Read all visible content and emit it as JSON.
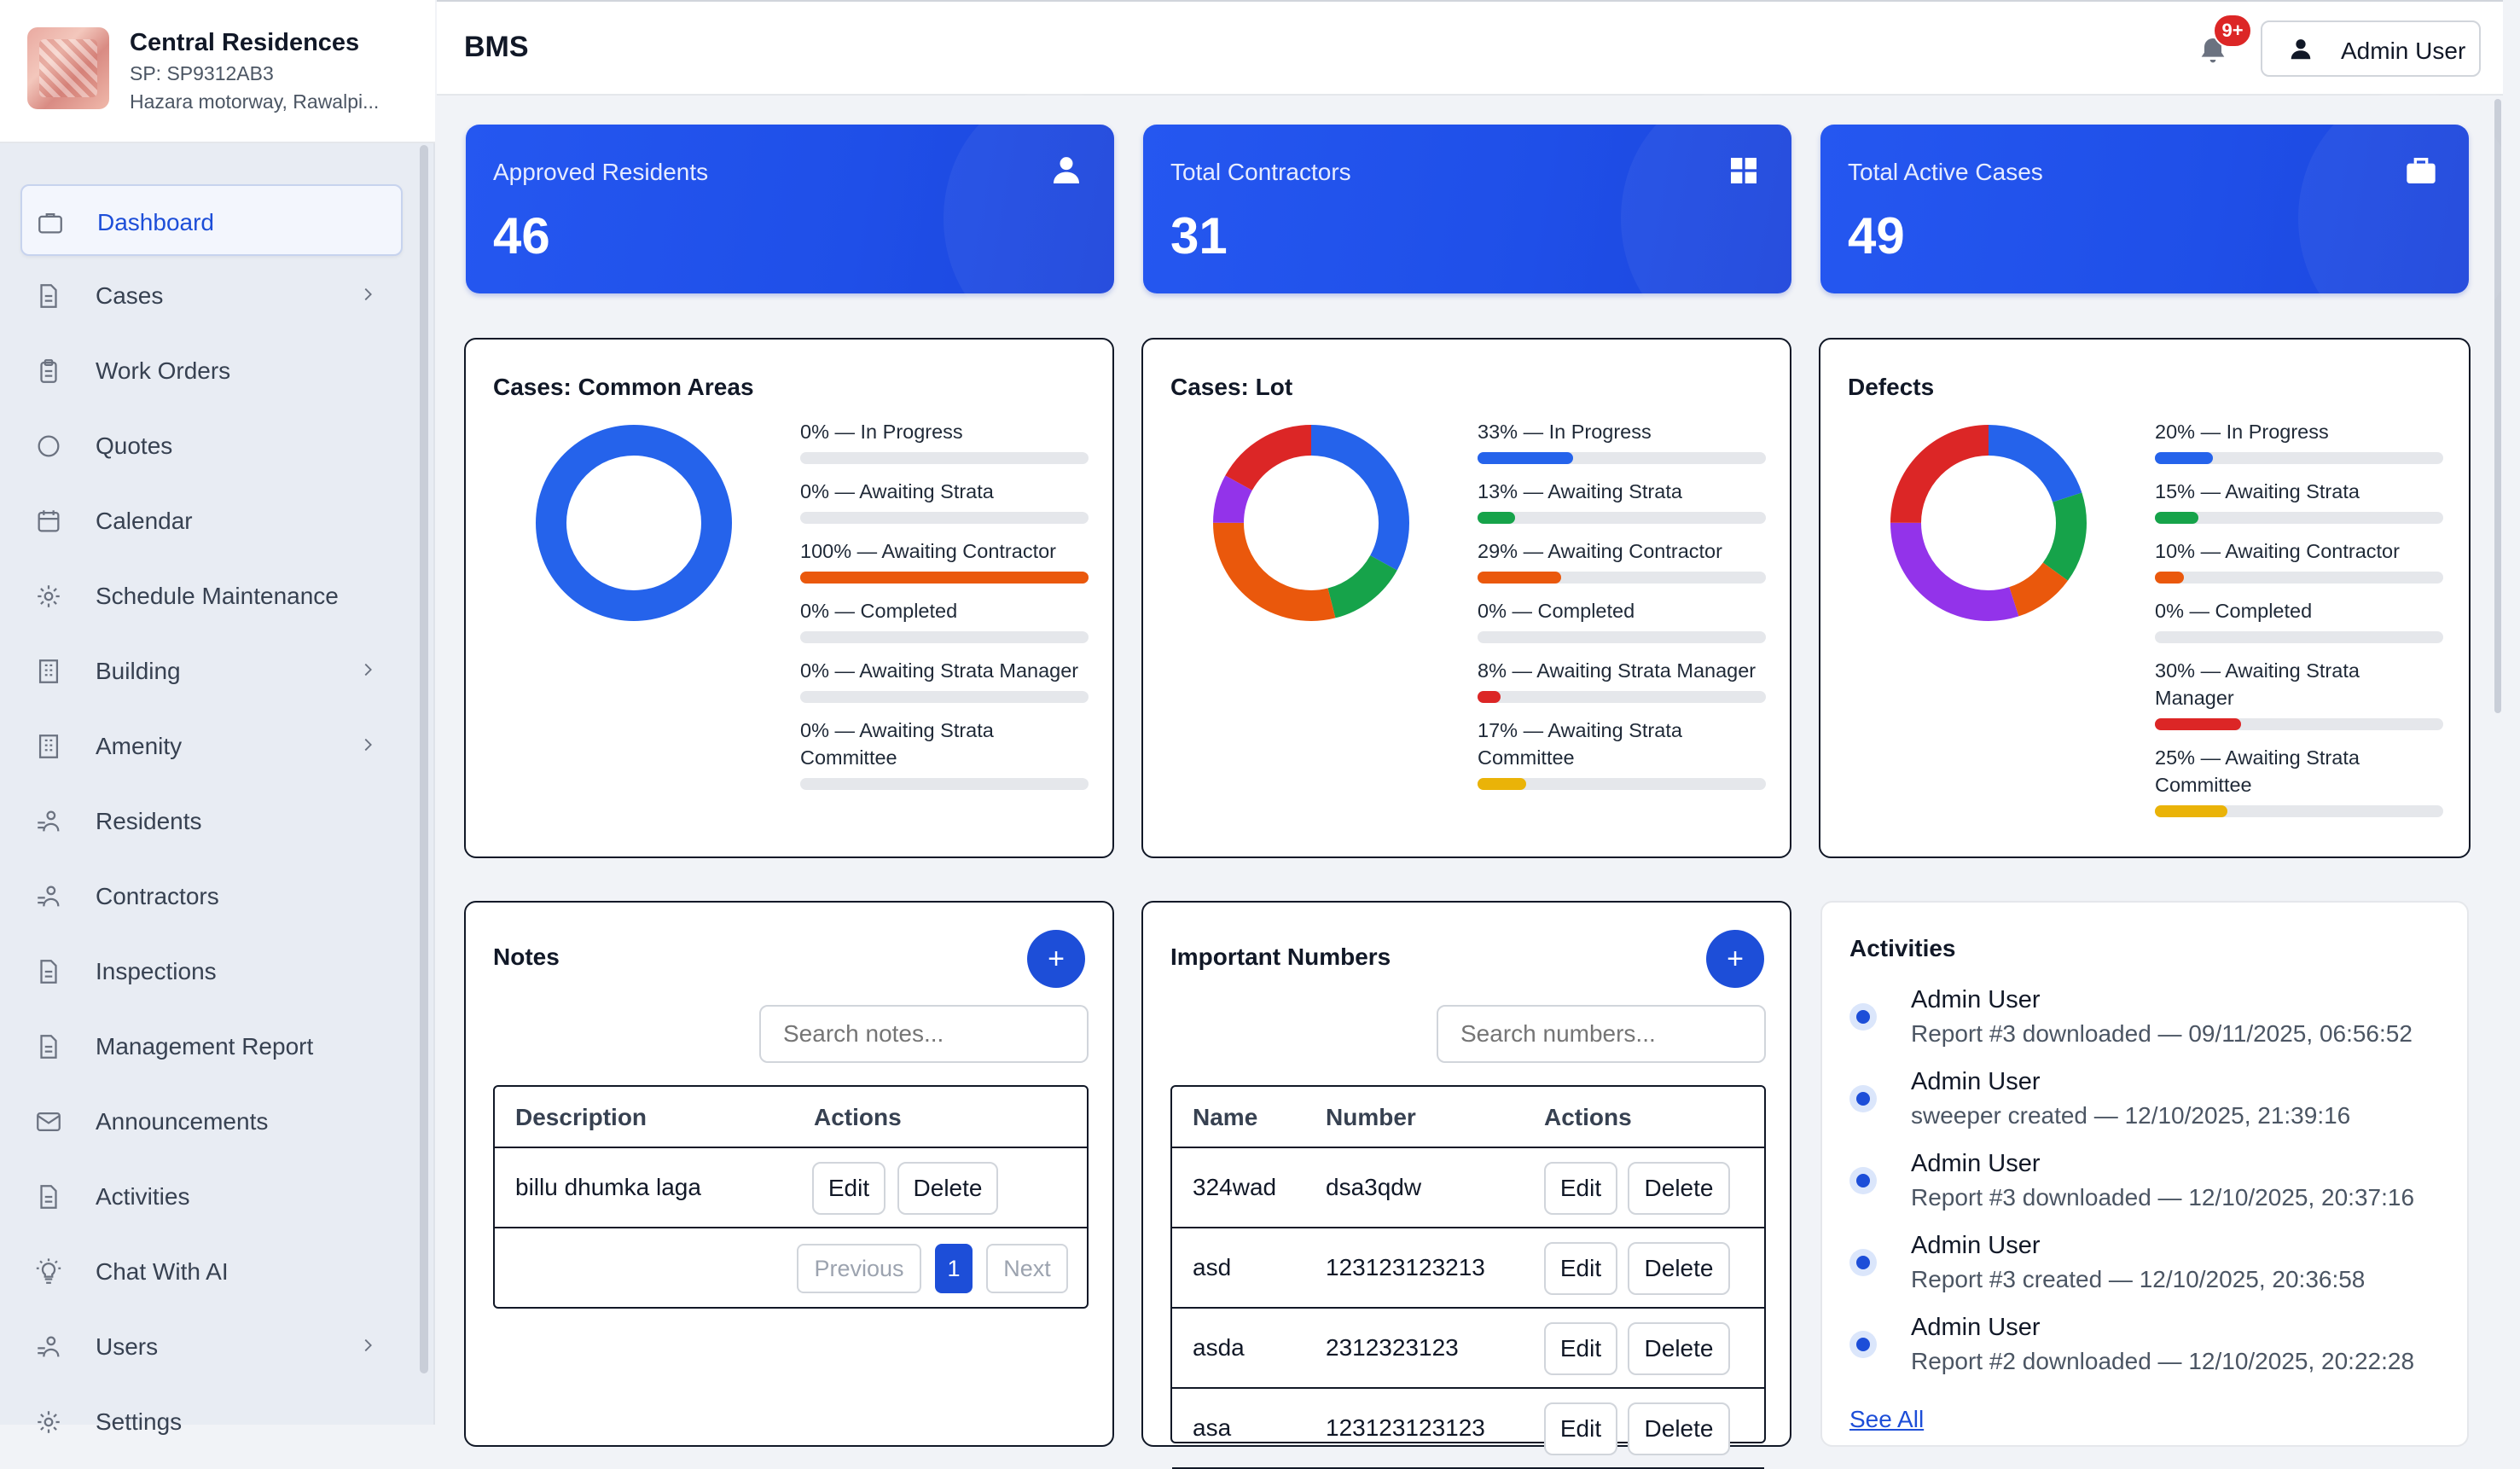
{
  "brand": {
    "title": "Central Residences",
    "sp": "SP: SP9312AB3",
    "address": "Hazara motorway, Rawalpi..."
  },
  "topbar": {
    "app_title": "BMS",
    "notification_badge": "9+",
    "user_label": "Admin User"
  },
  "sidebar": {
    "items": [
      {
        "label": "Dashboard",
        "icon": "briefcase-icon"
      },
      {
        "label": "Cases",
        "icon": "document-icon"
      },
      {
        "label": "Work Orders",
        "icon": "clipboard-icon"
      },
      {
        "label": "Quotes",
        "icon": "chat-icon"
      },
      {
        "label": "Calendar",
        "icon": "calendar-icon"
      },
      {
        "label": "Schedule Maintenance",
        "icon": "gear-icon"
      },
      {
        "label": "Building",
        "icon": "building-icon"
      },
      {
        "label": "Amenity",
        "icon": "building-icon"
      },
      {
        "label": "Residents",
        "icon": "people-icon"
      },
      {
        "label": "Contractors",
        "icon": "people-icon"
      },
      {
        "label": "Inspections",
        "icon": "document-icon"
      },
      {
        "label": "Management Report",
        "icon": "document-icon"
      },
      {
        "label": "Announcements",
        "icon": "mail-icon"
      },
      {
        "label": "Activities",
        "icon": "document-icon"
      },
      {
        "label": "Chat With AI",
        "icon": "lightbulb-icon"
      },
      {
        "label": "Users",
        "icon": "people-icon"
      },
      {
        "label": "Settings",
        "icon": "gear-icon"
      }
    ]
  },
  "stats": [
    {
      "label": "Approved Residents",
      "value": "46",
      "icon": "person-icon"
    },
    {
      "label": "Total Contractors",
      "value": "31",
      "icon": "grid-icon"
    },
    {
      "label": "Total Active Cases",
      "value": "49",
      "icon": "briefcase-icon"
    }
  ],
  "colors": {
    "in_progress": "#2563eb",
    "awaiting_strata": "#16a34a",
    "awaiting_contractor": "#ea580c",
    "completed": "#9ca3af",
    "awaiting_strata_manager": "#dc2626",
    "awaiting_strata_committee": "#eab308",
    "extra_purple": "#9333ea",
    "accent": "#1d4ed8"
  },
  "chart_data": [
    {
      "type": "pie",
      "title": "Cases: Common Areas",
      "slices": [
        {
          "label": "0% — In Progress",
          "percent": 0,
          "color": "#2563eb"
        },
        {
          "label": "0% — Awaiting Strata",
          "percent": 0,
          "color": "#16a34a"
        },
        {
          "label": "100% — Awaiting Contractor",
          "percent": 100,
          "color": "#ea580c"
        },
        {
          "label": "0% — Completed",
          "percent": 0,
          "color": "#9ca3af"
        },
        {
          "label": "0% — Awaiting Strata Manager",
          "percent": 0,
          "color": "#dc2626"
        },
        {
          "label": "0% — Awaiting Strata Committee",
          "percent": 0,
          "color": "#eab308"
        }
      ],
      "ring": [
        {
          "value": 100,
          "color": "#2563eb"
        }
      ]
    },
    {
      "type": "pie",
      "title": "Cases: Lot",
      "slices": [
        {
          "label": "33% — In Progress",
          "percent": 33,
          "color": "#2563eb"
        },
        {
          "label": "13% — Awaiting Strata",
          "percent": 13,
          "color": "#16a34a"
        },
        {
          "label": "29% — Awaiting Contractor",
          "percent": 29,
          "color": "#ea580c"
        },
        {
          "label": "0% — Completed",
          "percent": 0,
          "color": "#9ca3af"
        },
        {
          "label": "8% — Awaiting Strata Manager",
          "percent": 8,
          "color": "#dc2626"
        },
        {
          "label": "17% — Awaiting Strata Committee",
          "percent": 17,
          "color": "#eab308"
        }
      ],
      "ring": [
        {
          "value": 33,
          "color": "#2563eb"
        },
        {
          "value": 13,
          "color": "#16a34a"
        },
        {
          "value": 29,
          "color": "#ea580c"
        },
        {
          "value": 8,
          "color": "#9333ea"
        },
        {
          "value": 17,
          "color": "#dc2626"
        }
      ]
    },
    {
      "type": "pie",
      "title": "Defects",
      "slices": [
        {
          "label": "20% — In Progress",
          "percent": 20,
          "color": "#2563eb"
        },
        {
          "label": "15% — Awaiting Strata",
          "percent": 15,
          "color": "#16a34a"
        },
        {
          "label": "10% — Awaiting Contractor",
          "percent": 10,
          "color": "#ea580c"
        },
        {
          "label": "0% — Completed",
          "percent": 0,
          "color": "#9ca3af"
        },
        {
          "label": "30% — Awaiting Strata Manager",
          "percent": 30,
          "color": "#dc2626"
        },
        {
          "label": "25% — Awaiting Strata Committee",
          "percent": 25,
          "color": "#eab308"
        }
      ],
      "ring": [
        {
          "value": 20,
          "color": "#2563eb"
        },
        {
          "value": 15,
          "color": "#16a34a"
        },
        {
          "value": 10,
          "color": "#ea580c"
        },
        {
          "value": 30,
          "color": "#9333ea"
        },
        {
          "value": 25,
          "color": "#dc2626"
        }
      ]
    }
  ],
  "notes": {
    "title": "Notes",
    "add_label": "+",
    "search_placeholder": "Search notes...",
    "columns": [
      "Description",
      "Actions"
    ],
    "rows": [
      {
        "description": "billu dhumka laga",
        "edit": "Edit",
        "delete": "Delete"
      }
    ],
    "pager": {
      "previous": "Previous",
      "current": "1",
      "next": "Next"
    }
  },
  "numbers": {
    "title": "Important Numbers",
    "add_label": "+",
    "search_placeholder": "Search numbers...",
    "columns": [
      "Name",
      "Number",
      "Actions"
    ],
    "rows": [
      {
        "name": "324wad",
        "number": "dsa3qdw",
        "edit": "Edit",
        "delete": "Delete"
      },
      {
        "name": "asd",
        "number": "123123123213",
        "edit": "Edit",
        "delete": "Delete"
      },
      {
        "name": "asda",
        "number": "2312323123",
        "edit": "Edit",
        "delete": "Delete"
      },
      {
        "name": "asa",
        "number": "123123123123",
        "edit": "Edit",
        "delete": "Delete"
      }
    ]
  },
  "activities": {
    "title": "Activities",
    "items": [
      {
        "user": "Admin User",
        "desc": "Report #3 downloaded — 09/11/2025, 06:56:52"
      },
      {
        "user": "Admin User",
        "desc": "sweeper created — 12/10/2025, 21:39:16"
      },
      {
        "user": "Admin User",
        "desc": "Report #3 downloaded — 12/10/2025, 20:37:16"
      },
      {
        "user": "Admin User",
        "desc": "Report #3 created — 12/10/2025, 20:36:58"
      },
      {
        "user": "Admin User",
        "desc": "Report #2 downloaded — 12/10/2025, 20:22:28"
      }
    ],
    "see_all": "See All"
  }
}
